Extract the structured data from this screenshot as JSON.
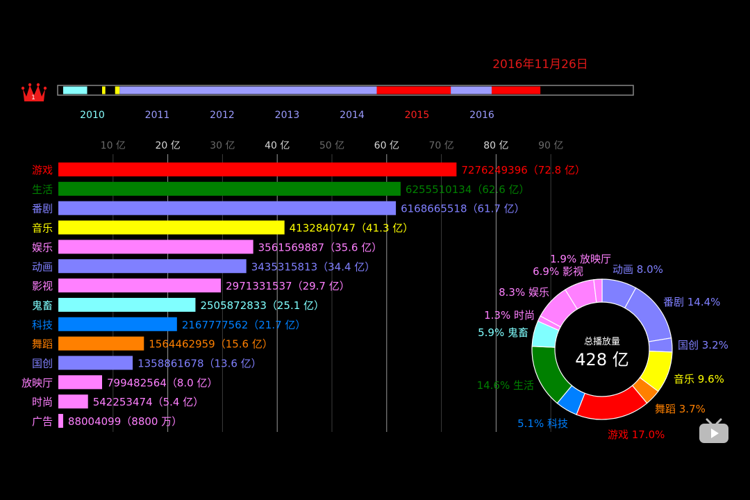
{
  "date": "2016年11月26日",
  "rank": "1",
  "timeline": {
    "years": [
      "2010",
      "2011",
      "2012",
      "2013",
      "2014",
      "2015",
      "2016"
    ],
    "year_colors": [
      "#8ff",
      "#9c9cff",
      "#9c9cff",
      "#9c9cff",
      "#9c9cff",
      "#ff2020",
      "#9c9cff"
    ],
    "segments": [
      {
        "color": "#8ff",
        "from": 2009.55,
        "to": 2009.92
      },
      {
        "color": "#ff0",
        "from": 2010.15,
        "to": 2010.2
      },
      {
        "color": "#ff0",
        "from": 2010.35,
        "to": 2010.42
      },
      {
        "color": "#9c9cff",
        "from": 2010.42,
        "to": 2014.38
      },
      {
        "color": "#f00",
        "from": 2014.38,
        "to": 2015.52
      },
      {
        "color": "#9c9cff",
        "from": 2015.52,
        "to": 2016.15
      },
      {
        "color": "#f00",
        "from": 2016.15,
        "to": 2016.9
      }
    ]
  },
  "chart_data": [
    {
      "type": "bar",
      "orientation": "horizontal",
      "x_ticks": [
        "10 亿",
        "20 亿",
        "30 亿",
        "40 亿",
        "50 亿",
        "60 亿",
        "70 亿",
        "80 亿",
        "90 亿"
      ],
      "xlim": [
        0,
        90
      ],
      "unit": "亿",
      "grid": true,
      "categories": [
        "游戏",
        "生活",
        "番剧",
        "音乐",
        "娱乐",
        "动画",
        "影视",
        "鬼畜",
        "科技",
        "舞蹈",
        "国创",
        "放映厅",
        "时尚",
        "广告"
      ],
      "values": [
        7276249396,
        6255510134,
        6168665518,
        4132840747,
        3561569887,
        3435315813,
        2971331537,
        2505872833,
        2167777562,
        1564462959,
        1358861678,
        799482564,
        542253474,
        88004099
      ],
      "value_labels": [
        "7276249396（72.8 亿）",
        "6255510134（62.6 亿）",
        "6168665518（61.7 亿）",
        "4132840747（41.3 亿）",
        "3561569887（35.6 亿）",
        "3435315813（34.4 亿）",
        "2971331537（29.7 亿）",
        "2505872833（25.1 亿）",
        "2167777562（21.7 亿）",
        "1564462959（15.6 亿）",
        "1358861678（13.6 亿）",
        "799482564（8.0 亿）",
        "542253474（5.4 亿）",
        "88004099（8800 万）"
      ],
      "colors": [
        "#ff0000",
        "#008000",
        "#8080ff",
        "#ffff00",
        "#ff80ff",
        "#8080ff",
        "#ff80ff",
        "#80ffff",
        "#0080ff",
        "#ff8000",
        "#8080ff",
        "#ff80ff",
        "#ff80ff",
        "#ff80ff"
      ]
    },
    {
      "type": "pie",
      "variant": "donut",
      "center_label": "总播放量",
      "center_value": "428 亿",
      "slices": [
        {
          "label": "动画",
          "pct": "8.0%",
          "value": 8.0,
          "color": "#8080ff",
          "text": "动画 8.0%"
        },
        {
          "label": "番剧",
          "pct": "14.4%",
          "value": 14.4,
          "color": "#8080ff",
          "text": "番剧 14.4%"
        },
        {
          "label": "国创",
          "pct": "3.2%",
          "value": 3.2,
          "color": "#8080ff",
          "text": "国创 3.2%"
        },
        {
          "label": "音乐",
          "pct": "9.6%",
          "value": 9.6,
          "color": "#ffff00",
          "text": "音乐 9.6%"
        },
        {
          "label": "舞蹈",
          "pct": "3.7%",
          "value": 3.7,
          "color": "#ff8000",
          "text": "舞蹈 3.7%"
        },
        {
          "label": "游戏",
          "pct": "17.0%",
          "value": 17.0,
          "color": "#ff0000",
          "text": "游戏 17.0%"
        },
        {
          "label": "科技",
          "pct": "5.1%",
          "value": 5.1,
          "color": "#0080ff",
          "text": "5.1% 科技"
        },
        {
          "label": "生活",
          "pct": "14.6%",
          "value": 14.6,
          "color": "#008000",
          "text": "14.6% 生活"
        },
        {
          "label": "鬼畜",
          "pct": "5.9%",
          "value": 5.9,
          "color": "#80ffff",
          "text": "5.9% 鬼畜"
        },
        {
          "label": "时尚",
          "pct": "1.3%",
          "value": 1.3,
          "color": "#ff80ff",
          "text": "1.3% 时尚"
        },
        {
          "label": "娱乐",
          "pct": "8.3%",
          "value": 8.3,
          "color": "#ff80ff",
          "text": "8.3% 娱乐"
        },
        {
          "label": "影视",
          "pct": "6.9%",
          "value": 6.9,
          "color": "#ff80ff",
          "text": "6.9% 影视"
        },
        {
          "label": "放映厅",
          "pct": "1.9%",
          "value": 1.9,
          "color": "#ff80ff",
          "text": "1.9% 放映厅"
        }
      ]
    }
  ]
}
